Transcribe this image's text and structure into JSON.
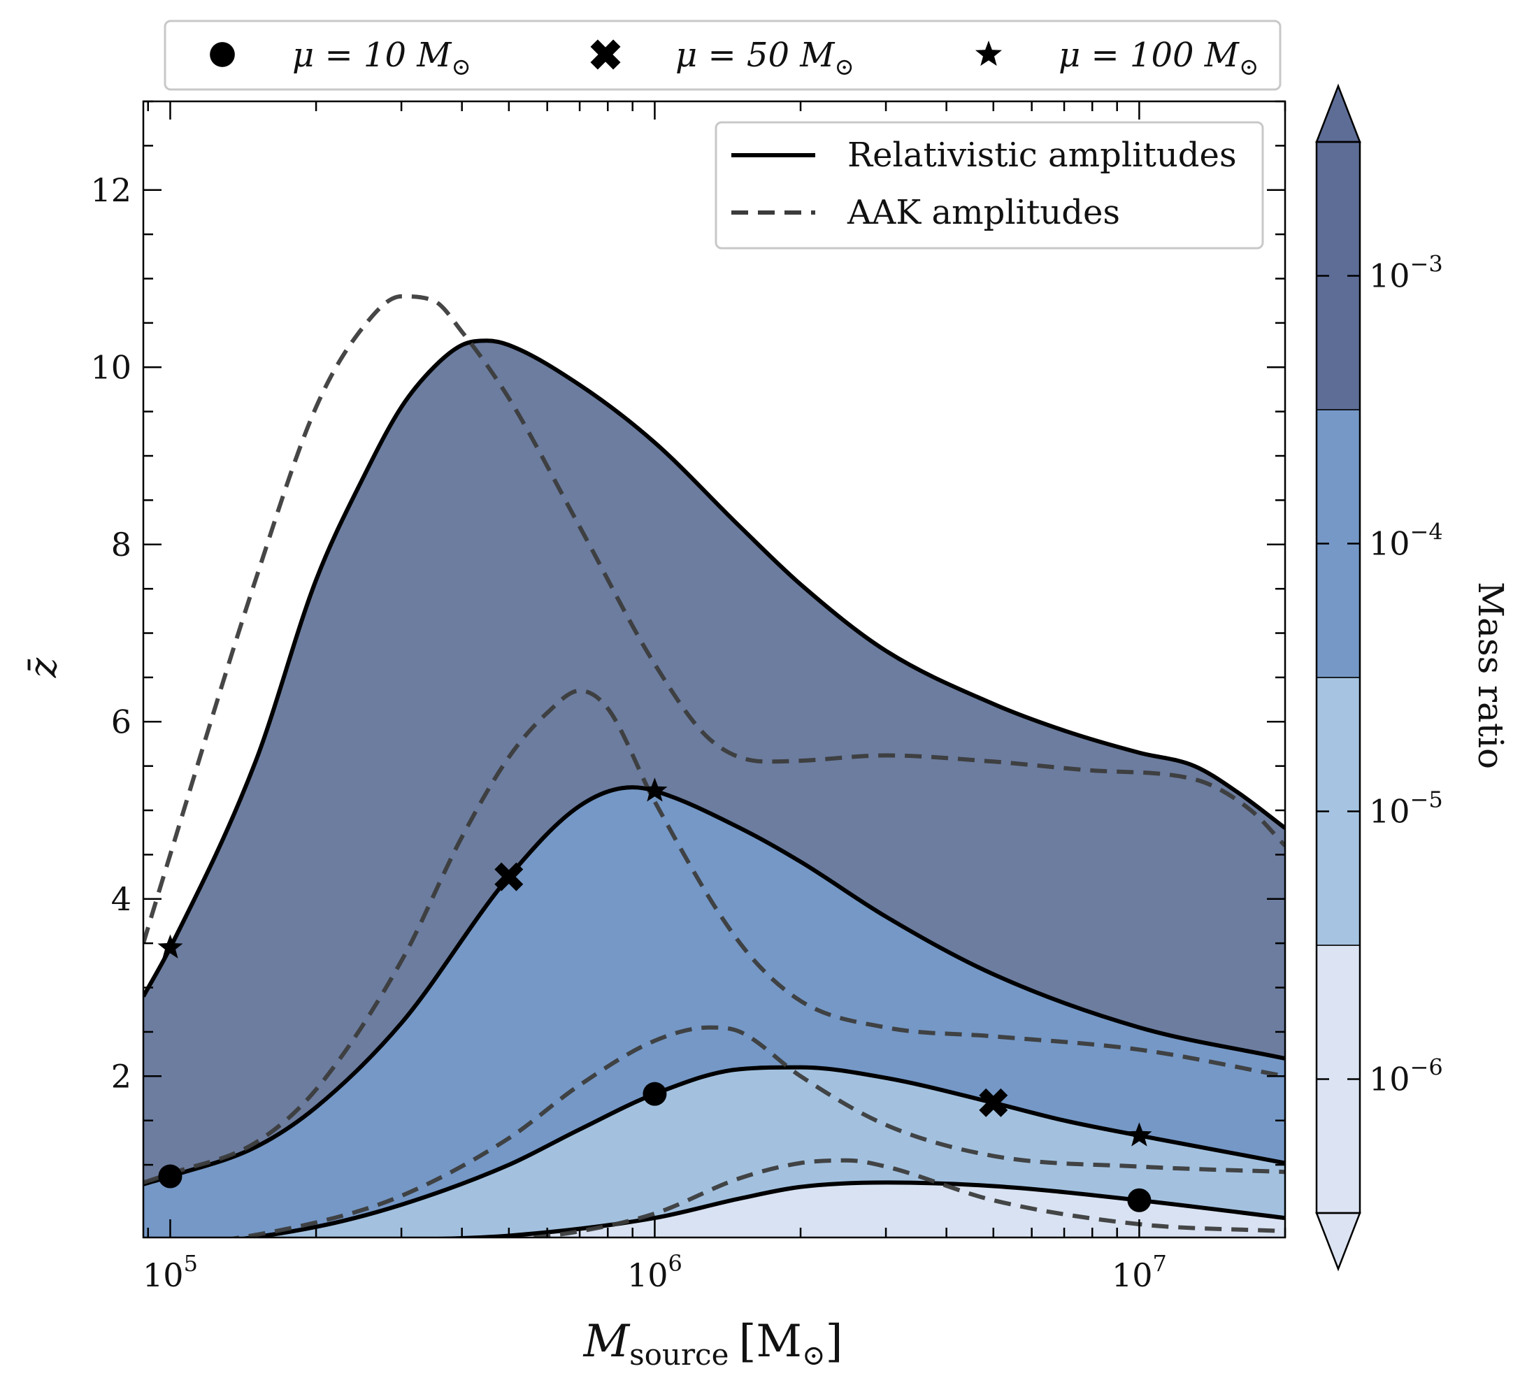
{
  "chart_data": {
    "type": "area",
    "title": "",
    "xlabel": {
      "main": "M",
      "sub": "source",
      "unit_open": "[M",
      "unit_sub": "⊙",
      "unit_close": "]"
    },
    "ylabel": "z̄",
    "xscale": "log",
    "xlim": [
      88000,
      20000000
    ],
    "ylim": [
      0.18,
      13.0
    ],
    "grid": false,
    "x_ticks": [
      {
        "value": 100000,
        "base": "10",
        "exp": "5"
      },
      {
        "value": 1000000,
        "base": "10",
        "exp": "6"
      },
      {
        "value": 10000000,
        "base": "10",
        "exp": "7"
      }
    ],
    "y_ticks": [
      {
        "value": 2,
        "label": "2"
      },
      {
        "value": 4,
        "label": "4"
      },
      {
        "value": 6,
        "label": "6"
      },
      {
        "value": 8,
        "label": "8"
      },
      {
        "value": 10,
        "label": "10"
      },
      {
        "value": 12,
        "label": "12"
      }
    ],
    "fill_colors": [
      "#d8e2f2",
      "#a3c1df",
      "#7598c6",
      "#6c7d9f"
    ],
    "series": [
      {
        "name": "",
        "mass_ratio": "1e-6",
        "style": "solid",
        "x": [
          88000,
          150000,
          300000,
          500000,
          1000000,
          1500000,
          2000000,
          3000000,
          5000000,
          10000000,
          20000000
        ],
        "y": [
          0.05,
          0.07,
          0.15,
          0.2,
          0.4,
          0.62,
          0.75,
          0.8,
          0.76,
          0.6,
          0.4
        ]
      },
      {
        "name": "",
        "mass_ratio": "1e-5",
        "style": "solid",
        "x": [
          88000,
          100000,
          200000,
          300000,
          500000,
          700000,
          1000000,
          1500000,
          2000000,
          3000000,
          5000000,
          7000000,
          10000000,
          20000000
        ],
        "y": [
          0.05,
          0.07,
          0.3,
          0.55,
          1.0,
          1.4,
          1.8,
          2.08,
          2.1,
          1.98,
          1.7,
          1.5,
          1.33,
          1.02
        ]
      },
      {
        "name": "",
        "mass_ratio": "1e-4",
        "style": "solid",
        "x": [
          88000,
          100000,
          150000,
          200000,
          300000,
          500000,
          700000,
          900000,
          1000000,
          1500000,
          2000000,
          3000000,
          5000000,
          10000000,
          20000000
        ],
        "y": [
          0.78,
          0.87,
          1.2,
          1.65,
          2.6,
          4.25,
          5.05,
          5.26,
          5.22,
          4.8,
          4.42,
          3.8,
          3.15,
          2.55,
          2.2
        ]
      },
      {
        "name": "",
        "mass_ratio": "1e-3",
        "style": "solid",
        "x": [
          88000,
          100000,
          150000,
          200000,
          250000,
          300000,
          350000,
          400000,
          450000,
          500000,
          700000,
          1000000,
          1500000,
          2000000,
          3000000,
          5000000,
          7000000,
          10000000,
          13000000,
          16000000,
          20000000
        ],
        "y": [
          2.9,
          3.45,
          5.55,
          7.6,
          8.75,
          9.55,
          10.0,
          10.25,
          10.3,
          10.25,
          9.8,
          9.15,
          8.2,
          7.55,
          6.8,
          6.2,
          5.9,
          5.65,
          5.5,
          5.2,
          4.8
        ]
      },
      {
        "name": "",
        "mass_ratio": "1e-6",
        "style": "dashed",
        "x": [
          300000,
          500000,
          700000,
          1000000,
          1500000,
          2000000,
          2500000,
          3000000,
          5000000,
          10000000,
          20000000
        ],
        "y": [
          0.05,
          0.15,
          0.25,
          0.45,
          0.85,
          1.02,
          1.05,
          0.98,
          0.6,
          0.33,
          0.25
        ]
      },
      {
        "name": "",
        "mass_ratio": "1e-5",
        "style": "dashed",
        "x": [
          88000,
          100000,
          200000,
          300000,
          500000,
          700000,
          1000000,
          1300000,
          1500000,
          2000000,
          3000000,
          5000000,
          10000000,
          20000000
        ],
        "y": [
          0.05,
          0.07,
          0.35,
          0.65,
          1.3,
          1.9,
          2.4,
          2.55,
          2.5,
          2.0,
          1.45,
          1.1,
          0.98,
          0.92
        ]
      },
      {
        "name": "",
        "mass_ratio": "1e-4",
        "style": "dashed",
        "x": [
          88000,
          100000,
          150000,
          200000,
          300000,
          400000,
          500000,
          600000,
          700000,
          800000,
          1000000,
          1500000,
          2000000,
          3000000,
          5000000,
          10000000,
          20000000
        ],
        "y": [
          0.8,
          0.9,
          1.25,
          1.85,
          3.3,
          4.7,
          5.6,
          6.1,
          6.35,
          6.15,
          5.1,
          3.5,
          2.85,
          2.55,
          2.45,
          2.3,
          2.0
        ]
      },
      {
        "name": "",
        "mass_ratio": "1e-3",
        "style": "dashed",
        "x": [
          88000,
          100000,
          150000,
          200000,
          250000,
          300000,
          350000,
          400000,
          500000,
          700000,
          1000000,
          1300000,
          1700000,
          2000000,
          3000000,
          5000000,
          8000000,
          13000000,
          17000000,
          20000000
        ],
        "y": [
          3.5,
          4.5,
          7.6,
          9.55,
          10.45,
          10.8,
          10.75,
          10.4,
          9.65,
          8.2,
          6.65,
          5.8,
          5.55,
          5.56,
          5.62,
          5.55,
          5.45,
          5.35,
          5.0,
          4.6
        ]
      }
    ],
    "markers": [
      {
        "symbol": "circle",
        "x": 100000,
        "y": 0.87
      },
      {
        "symbol": "circle",
        "x": 1000000,
        "y": 1.8
      },
      {
        "symbol": "circle",
        "x": 10000000,
        "y": 0.6
      },
      {
        "symbol": "cross",
        "x": 500000,
        "y": 4.25
      },
      {
        "symbol": "cross",
        "x": 5000000,
        "y": 1.7
      },
      {
        "symbol": "star",
        "x": 100000,
        "y": 3.45
      },
      {
        "symbol": "star",
        "x": 1000000,
        "y": 5.22
      },
      {
        "symbol": "star",
        "x": 10000000,
        "y": 1.33
      }
    ],
    "marker_legend": [
      {
        "symbol": "circle",
        "pre": "μ = 10 M",
        "sub": "⊙"
      },
      {
        "symbol": "cross",
        "pre": "μ = 50 M",
        "sub": "⊙"
      },
      {
        "symbol": "star",
        "pre": "μ = 100 M",
        "sub": "⊙"
      }
    ],
    "line_legend": [
      {
        "style": "solid",
        "label": "Relativistic amplitudes"
      },
      {
        "style": "dashed",
        "label": "AAK amplitudes"
      }
    ],
    "line_legend_position": "top-right",
    "marker_legend_position": "above plot",
    "colorbar": {
      "label": "Mass ratio",
      "scale": "log",
      "extend": "both",
      "colors": [
        "#dce4f3",
        "#a6c4e1",
        "#7598c7",
        "#5d6d96"
      ],
      "under_color": "#dce4f3",
      "over_color": "#5d6d96",
      "ticks": [
        {
          "value": "1e-6",
          "base": "10",
          "exp": "−6"
        },
        {
          "value": "1e-5",
          "base": "10",
          "exp": "−5"
        },
        {
          "value": "1e-4",
          "base": "10",
          "exp": "−4"
        },
        {
          "value": "1e-3",
          "base": "10",
          "exp": "−3"
        }
      ]
    }
  }
}
